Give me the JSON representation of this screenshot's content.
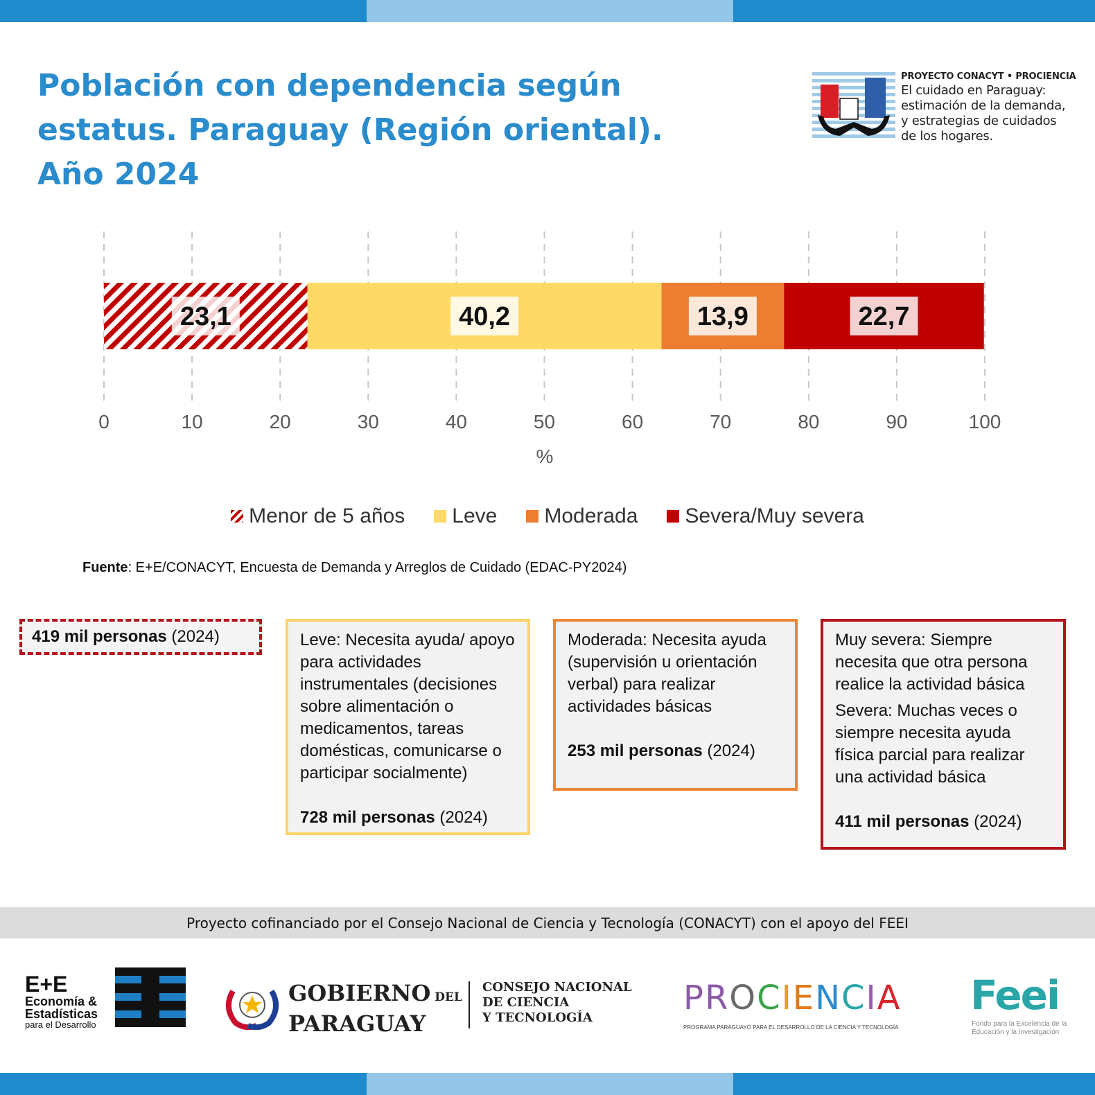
{
  "header": {
    "title": "Población con dependencia según estatus. Paraguay (Región oriental). Año 2024"
  },
  "project": {
    "heading": "PROYECTO CONACYT • PROCIENCIA",
    "line1": "El cuidado en Paraguay:",
    "line2": "estimación de la demanda,",
    "line3": "y estrategias de cuidados",
    "line4": "de los hogares."
  },
  "chart_data": {
    "type": "bar",
    "orientation": "horizontal",
    "stacked": true,
    "xlabel": "%",
    "xlim": [
      0,
      100
    ],
    "x_ticks": [
      "0",
      "10",
      "20",
      "30",
      "40",
      "50",
      "60",
      "70",
      "80",
      "90",
      "100"
    ],
    "grid": "vertical dashed",
    "legend_position": "bottom",
    "series": [
      {
        "name": "Menor de 5 años",
        "value": 23.1,
        "label": "23,1",
        "color": "#c00000",
        "pattern": "hatched"
      },
      {
        "name": "Leve",
        "value": 40.2,
        "label": "40,2",
        "color": "#ffd966",
        "pattern": "solid"
      },
      {
        "name": "Moderada",
        "value": 13.9,
        "label": "13,9",
        "color": "#ed7d31",
        "pattern": "solid"
      },
      {
        "name": "Severa/Muy severa",
        "value": 22.7,
        "label": "22,7",
        "color": "#c00000",
        "pattern": "solid"
      }
    ]
  },
  "source": {
    "label": "Fuente",
    "text": ": E+E/CONACYT, Encuesta de Demanda y Arreglos de Cuidado (EDAC-PY2024)"
  },
  "boxes": {
    "menor": {
      "count_bold": "419 mil personas",
      "count_year": " (2024)"
    },
    "leve": {
      "desc": "Leve: Necesita ayuda/ apoyo para actividades instrumentales (decisiones sobre alimentación o medicamentos, tareas domésticas, comunicarse o participar socialmente)",
      "count_bold": "728 mil personas",
      "count_year": " (2024)"
    },
    "moderada": {
      "desc": "Moderada: Necesita ayuda (supervisión u orientación verbal) para realizar actividades básicas",
      "count_bold": "253 mil personas",
      "count_year": " (2024)"
    },
    "severa": {
      "desc1": "Muy severa: Siempre necesita que otra persona realice la actividad básica",
      "desc2": "Severa: Muchas veces o siempre necesita ayuda física parcial para realizar una actividad básica",
      "count_bold": "411 mil personas",
      "count_year": " (2024)"
    }
  },
  "footer": {
    "cofinanciado": "Proyecto cofinanciado por el Consejo Nacional de Ciencia y Tecnología (CONACYT) con el apoyo del FEEI",
    "ee": {
      "big": "E+E",
      "line1": "Economía &",
      "line2": "Estadísticas",
      "line3": "para el Desarrollo"
    },
    "gobierno": {
      "line1a": "GOBIERNO",
      "line1b": "DEL",
      "line2": "PARAGUAY",
      "c1": "CONSEJO NACIONAL",
      "c2": "DE CIENCIA",
      "c3": "Y TECNOLOGÍA"
    },
    "prociencia": {
      "word": "PROCIENCIA",
      "sub": "PROGRAMA PARAGUAYO PARA EL DESARROLLO DE LA CIENCIA Y TECNOLOGÍA"
    },
    "feei": {
      "word": "Feei",
      "sub1": "Fondo para la Excelencia de la",
      "sub2": "Educación y la Investigación"
    }
  }
}
